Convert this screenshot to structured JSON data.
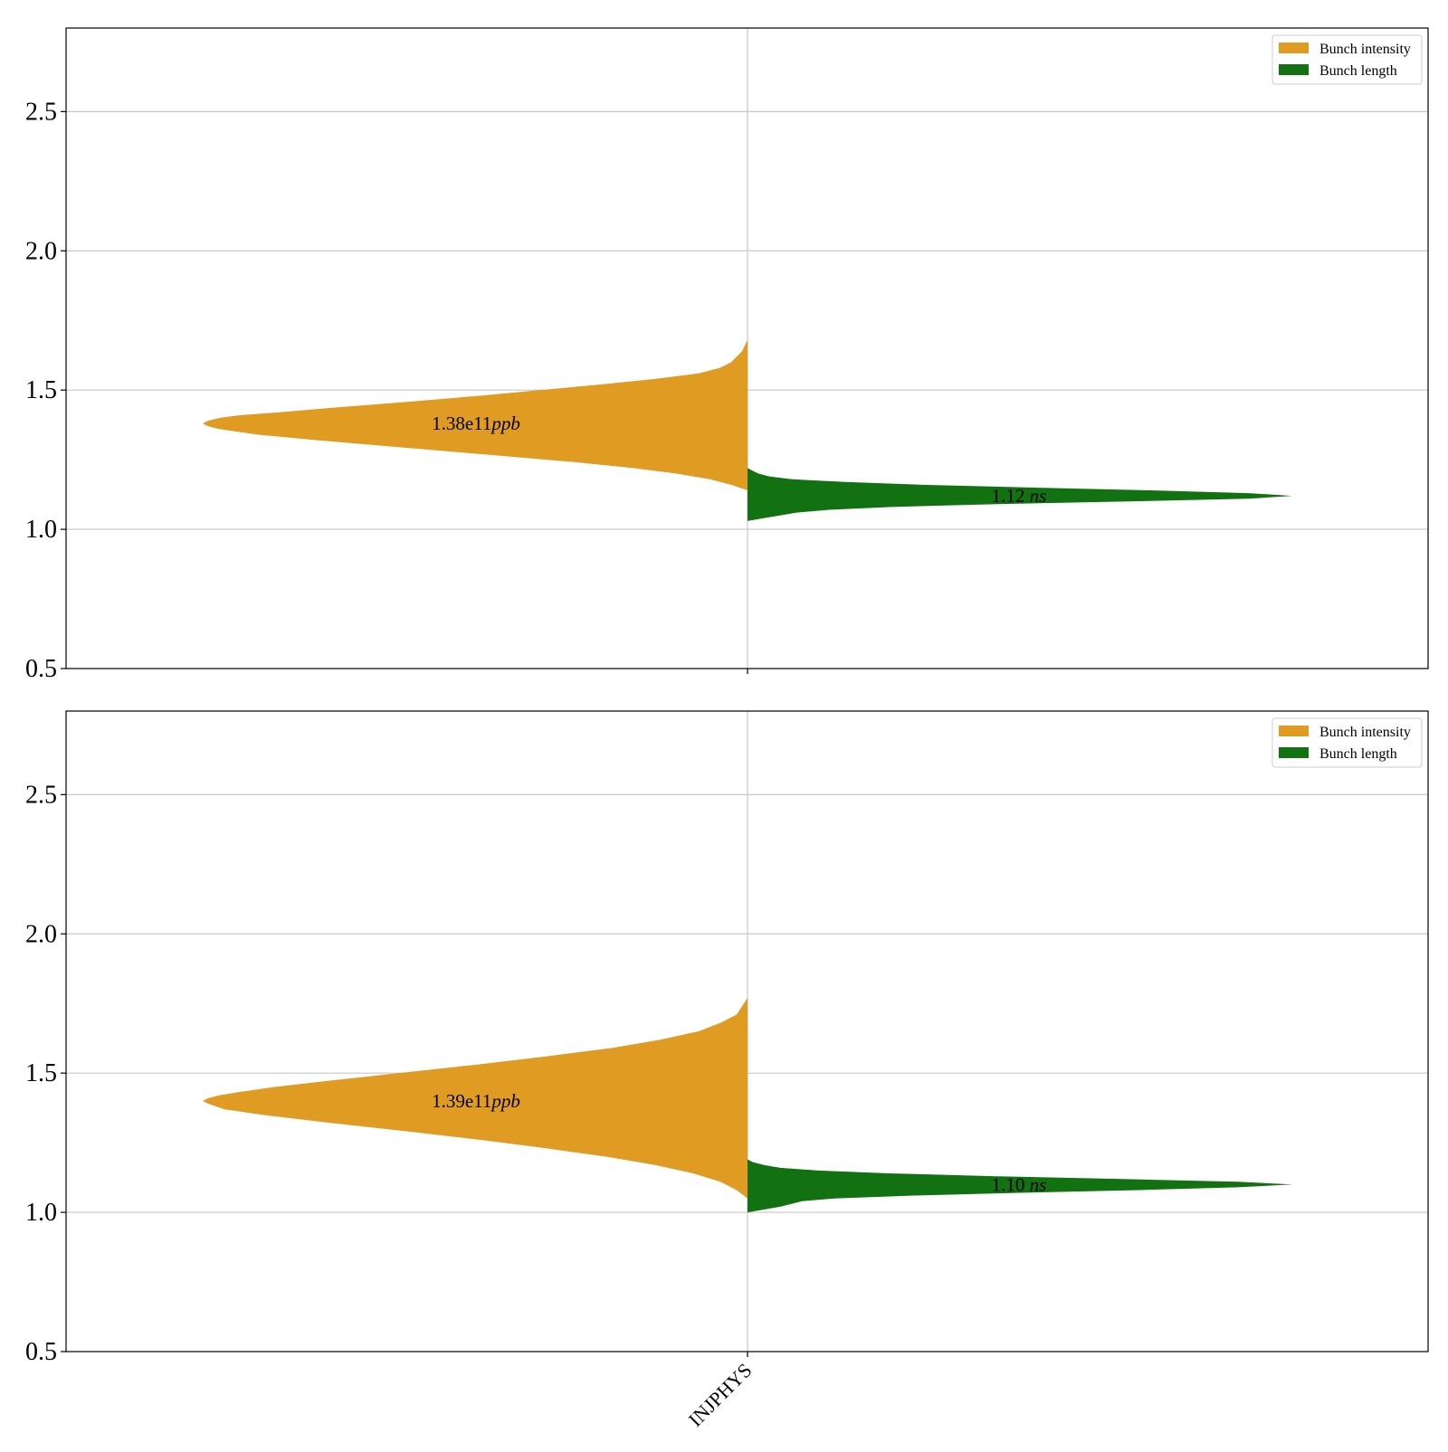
{
  "x_category": "INJPHYS",
  "legend_labels": [
    "Bunch intensity",
    "Bunch length"
  ],
  "colors": {
    "intensity": "#e09b22",
    "length": "#127212",
    "grid": "#c8c8c8",
    "axis": "#000000"
  },
  "chart_data": [
    {
      "type": "violin",
      "title": "",
      "xlabel": "",
      "ylabel": "",
      "ylim": [
        0.5,
        2.8
      ],
      "yticks": [
        0.5,
        1.0,
        1.5,
        2.0,
        2.5
      ],
      "ytick_labels": [
        "0.5",
        "1.0",
        "1.5",
        "2.0",
        "2.5"
      ],
      "categories": [
        "INJPHYS"
      ],
      "grid": true,
      "legend_position": "top-right",
      "series": [
        {
          "name": "Bunch intensity",
          "side": "left",
          "color": "#e09b22",
          "y": [
            1.14,
            1.16,
            1.18,
            1.2,
            1.22,
            1.24,
            1.26,
            1.28,
            1.3,
            1.32,
            1.34,
            1.36,
            1.37,
            1.38,
            1.39,
            1.4,
            1.41,
            1.42,
            1.44,
            1.46,
            1.48,
            1.5,
            1.52,
            1.54,
            1.56,
            1.58,
            1.6,
            1.62,
            1.64,
            1.66,
            1.68
          ],
          "density": [
            0.0,
            0.03,
            0.07,
            0.13,
            0.21,
            0.31,
            0.43,
            0.55,
            0.67,
            0.79,
            0.9,
            0.97,
            0.99,
            1.0,
            0.99,
            0.97,
            0.93,
            0.86,
            0.74,
            0.61,
            0.49,
            0.38,
            0.27,
            0.17,
            0.09,
            0.05,
            0.03,
            0.02,
            0.01,
            0.005,
            0.0
          ],
          "median_label": "1.38e11ppb",
          "median_text": "1.38e11",
          "median_unit": "ppb"
        },
        {
          "name": "Bunch length",
          "side": "right",
          "color": "#127212",
          "y": [
            1.03,
            1.04,
            1.05,
            1.06,
            1.07,
            1.08,
            1.09,
            1.1,
            1.11,
            1.12,
            1.13,
            1.14,
            1.15,
            1.16,
            1.17,
            1.18,
            1.19,
            1.2,
            1.21,
            1.22
          ],
          "density": [
            0.0,
            0.03,
            0.06,
            0.09,
            0.15,
            0.26,
            0.45,
            0.7,
            0.92,
            1.0,
            0.92,
            0.74,
            0.52,
            0.32,
            0.18,
            0.08,
            0.04,
            0.02,
            0.01,
            0.0
          ],
          "median_label": "1.12 ns",
          "median_text": "1.12 ",
          "median_unit": "ns"
        }
      ]
    },
    {
      "type": "violin",
      "title": "",
      "xlabel": "",
      "ylabel": "",
      "ylim": [
        0.5,
        2.8
      ],
      "yticks": [
        0.5,
        1.0,
        1.5,
        2.0,
        2.5
      ],
      "ytick_labels": [
        "0.5",
        "1.0",
        "1.5",
        "2.0",
        "2.5"
      ],
      "categories": [
        "INJPHYS"
      ],
      "grid": true,
      "legend_position": "top-right",
      "series": [
        {
          "name": "Bunch intensity",
          "side": "left",
          "color": "#e09b22",
          "y": [
            1.05,
            1.08,
            1.11,
            1.14,
            1.17,
            1.2,
            1.23,
            1.26,
            1.29,
            1.32,
            1.35,
            1.37,
            1.39,
            1.4,
            1.41,
            1.42,
            1.43,
            1.45,
            1.47,
            1.5,
            1.53,
            1.56,
            1.59,
            1.62,
            1.65,
            1.68,
            1.71,
            1.74,
            1.77
          ],
          "density": [
            0.0,
            0.02,
            0.05,
            0.1,
            0.17,
            0.26,
            0.37,
            0.49,
            0.62,
            0.76,
            0.89,
            0.96,
            0.99,
            1.0,
            0.99,
            0.97,
            0.94,
            0.87,
            0.78,
            0.64,
            0.5,
            0.37,
            0.25,
            0.16,
            0.09,
            0.05,
            0.02,
            0.01,
            0.0
          ],
          "median_label": "1.39e11ppb",
          "median_text": "1.39e11",
          "median_unit": "ppb"
        },
        {
          "name": "Bunch length",
          "side": "right",
          "color": "#127212",
          "y": [
            1.0,
            1.01,
            1.02,
            1.03,
            1.04,
            1.05,
            1.06,
            1.07,
            1.08,
            1.09,
            1.1,
            1.11,
            1.12,
            1.13,
            1.14,
            1.15,
            1.16,
            1.17,
            1.18,
            1.19
          ],
          "density": [
            0.0,
            0.03,
            0.06,
            0.08,
            0.1,
            0.16,
            0.3,
            0.5,
            0.72,
            0.9,
            1.0,
            0.9,
            0.68,
            0.45,
            0.26,
            0.13,
            0.06,
            0.03,
            0.01,
            0.0
          ],
          "median_label": "1.10 ns",
          "median_text": "1.10 ",
          "median_unit": "ns"
        }
      ]
    }
  ]
}
